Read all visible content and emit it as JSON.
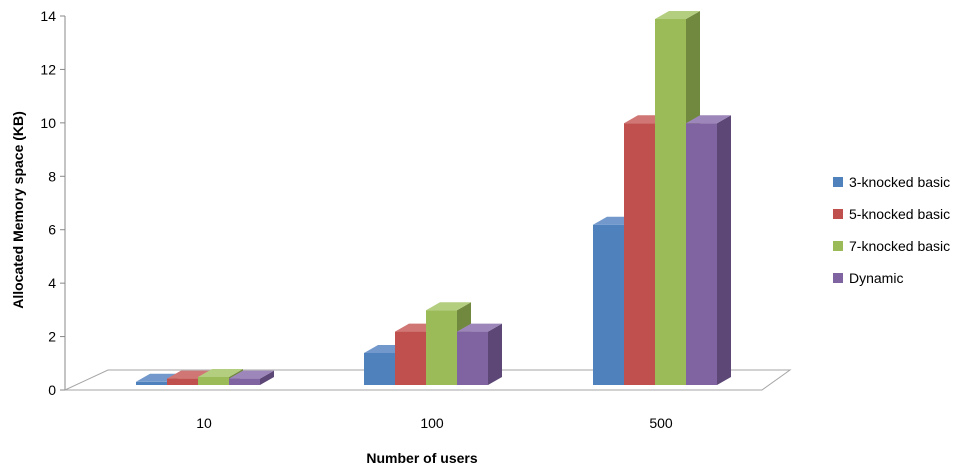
{
  "chart_data": {
    "type": "bar",
    "title": "",
    "xlabel": "Number of users",
    "ylabel": "Allocated Memory space (KB)",
    "categories": [
      "10",
      "100",
      "500"
    ],
    "ylim": [
      0,
      14
    ],
    "yticks": [
      "0",
      "2",
      "4",
      "6",
      "8",
      "10",
      "12",
      "14"
    ],
    "series": [
      {
        "name": "3-knocked basic",
        "values": [
          0.12,
          1.2,
          6.0
        ]
      },
      {
        "name": "5-knocked basic",
        "values": [
          0.24,
          2.0,
          9.8
        ]
      },
      {
        "name": "7-knocked basic",
        "values": [
          0.3,
          2.8,
          13.7
        ]
      },
      {
        "name": "Dynamic",
        "values": [
          0.24,
          2.0,
          9.8
        ]
      }
    ],
    "legend_position": "right",
    "grid": false,
    "style": "3d-clustered-column"
  },
  "colors": {
    "series": [
      {
        "front": "#4F81BD",
        "side": "#385D8A",
        "top": "#7399CC"
      },
      {
        "front": "#C0504D",
        "side": "#8C3836",
        "top": "#D07674"
      },
      {
        "front": "#9BBB59",
        "side": "#71893F",
        "top": "#B4CE80"
      },
      {
        "front": "#8064A2",
        "side": "#5C4776",
        "top": "#9D87BA"
      }
    ],
    "floor": "#ffffff",
    "floor_edge": "#a6a6a6",
    "axis": "#888888"
  }
}
